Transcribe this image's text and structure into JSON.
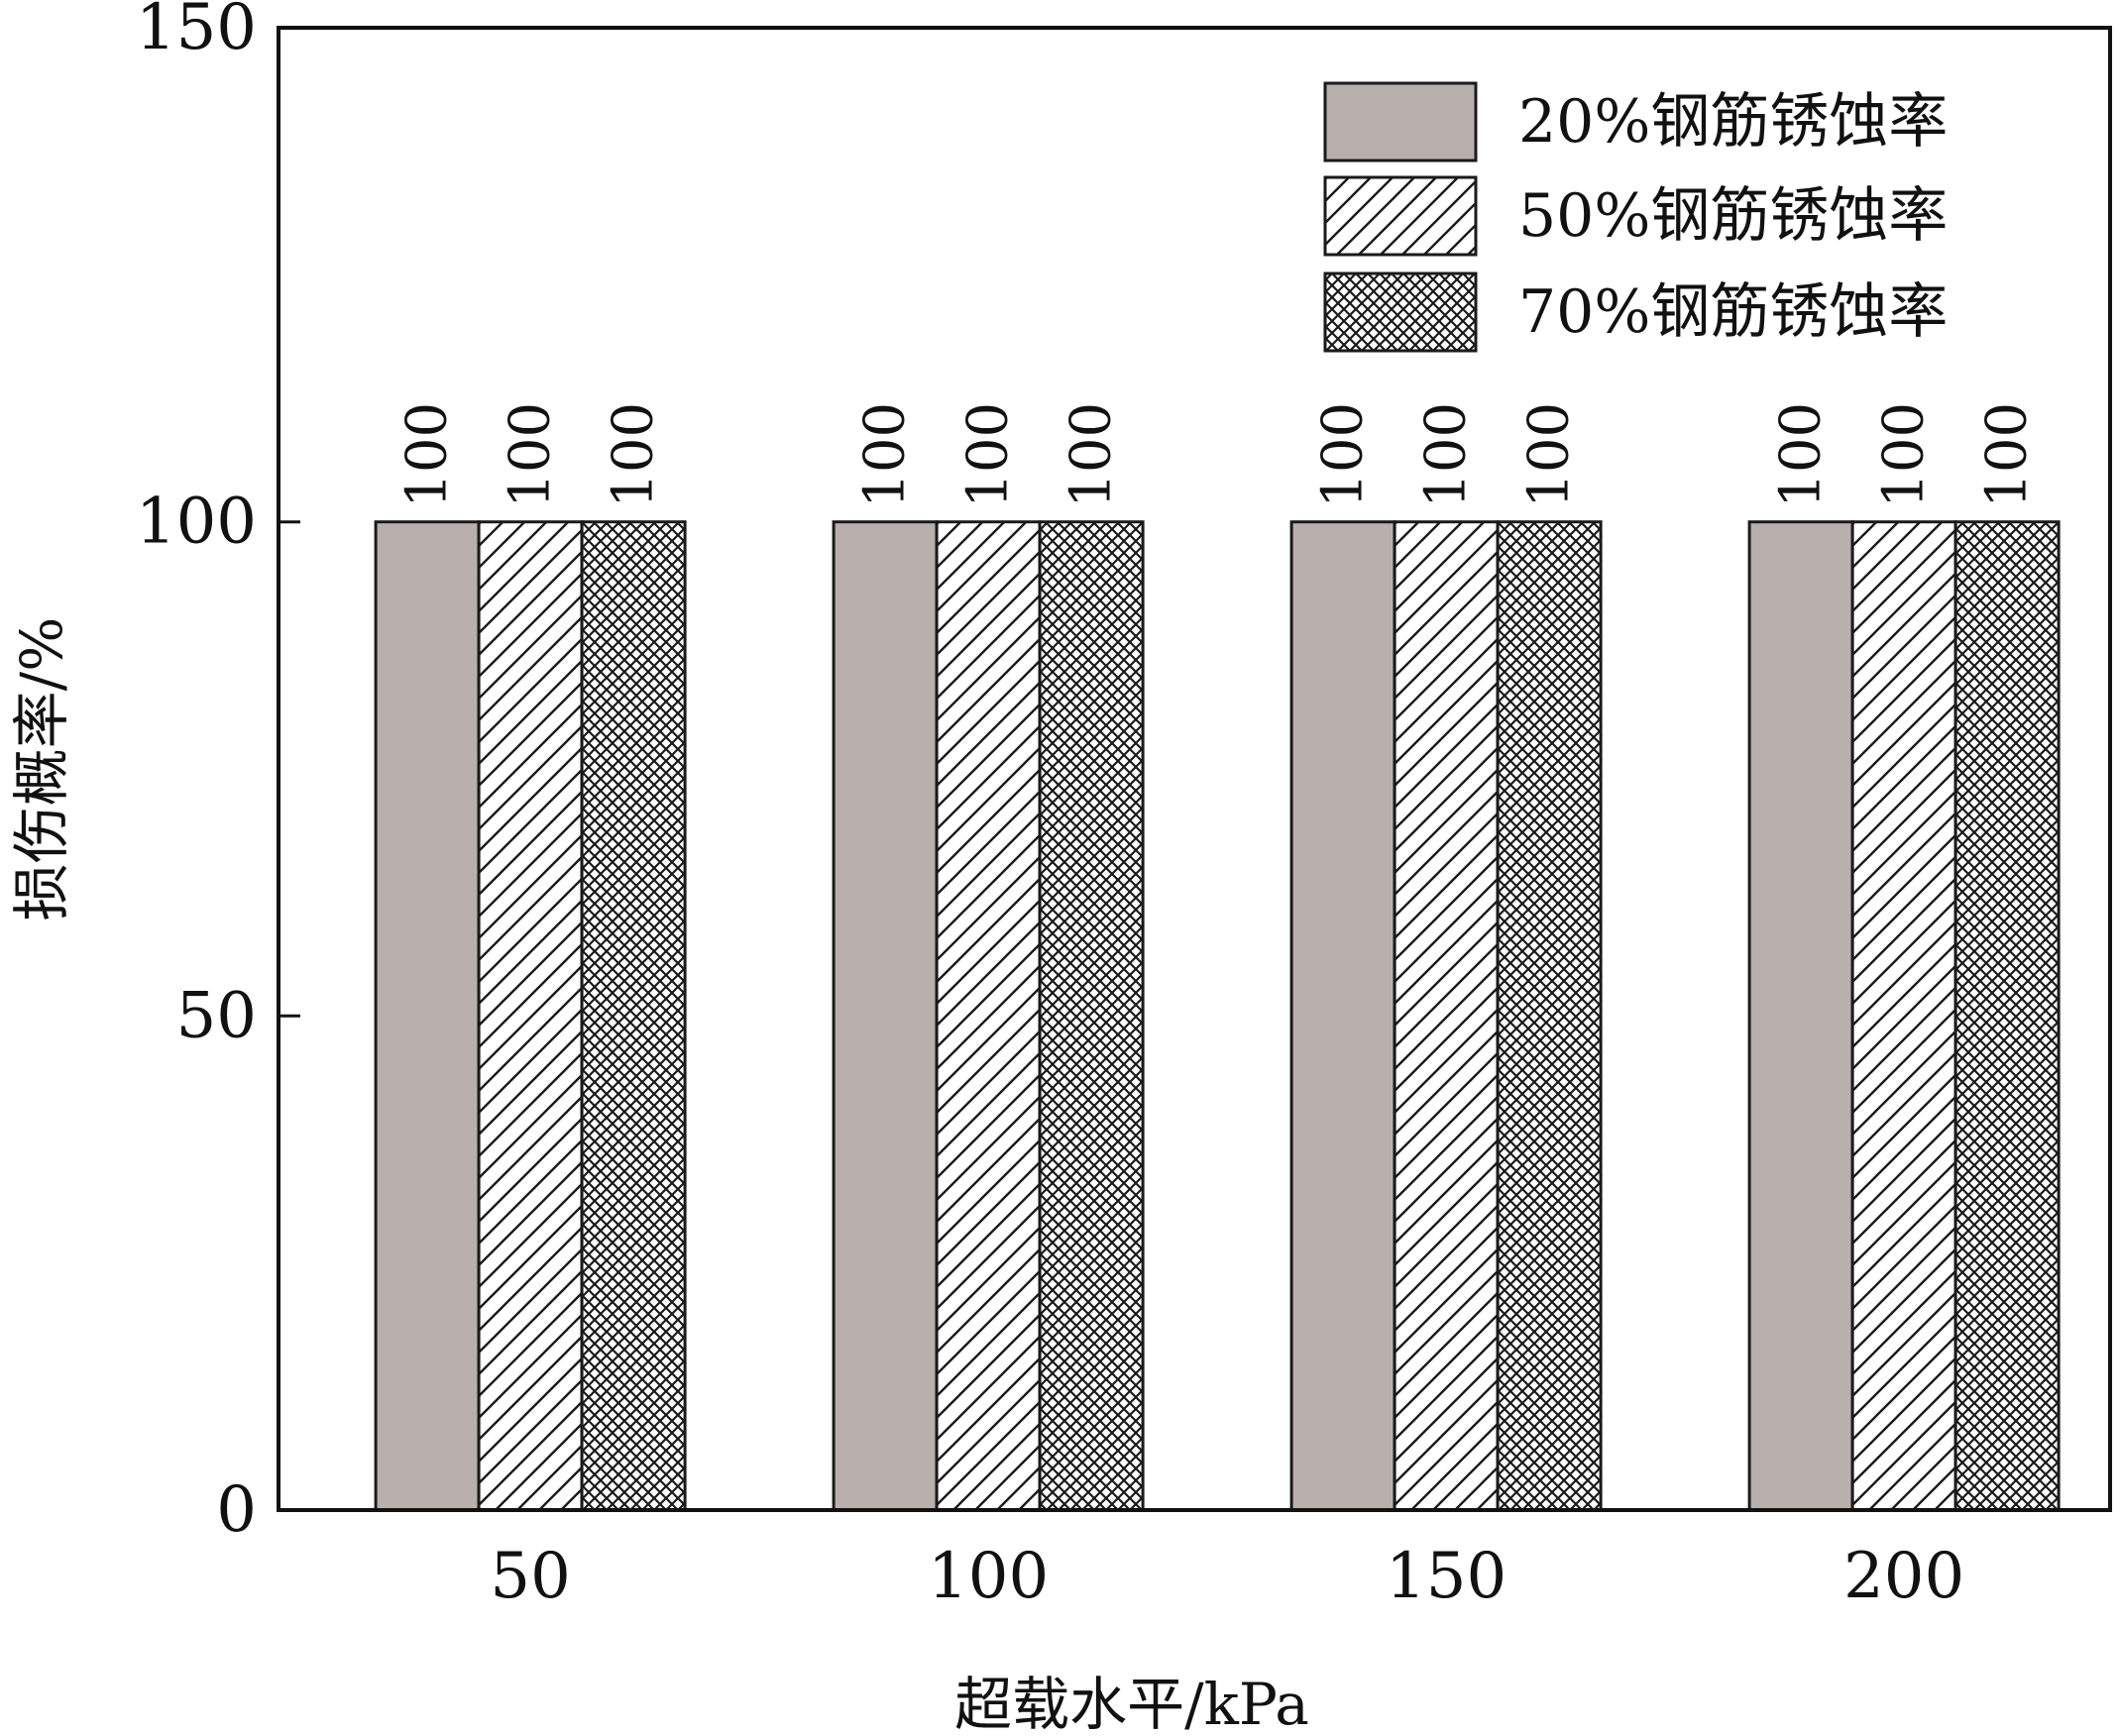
{
  "chart_data": {
    "type": "bar",
    "xlabel": "超载水平/kPa",
    "ylabel": "损伤概率/%",
    "categories": [
      "50",
      "100",
      "150",
      "200"
    ],
    "series": [
      {
        "name": "20%钢筋锈蚀率",
        "values": [
          100,
          100,
          100,
          100
        ],
        "fill": "solid",
        "color": "#b9b0ad"
      },
      {
        "name": "50%钢筋锈蚀率",
        "values": [
          100,
          100,
          100,
          100
        ],
        "fill": "diagonal-hatch",
        "color": "#ffffff"
      },
      {
        "name": "70%钢筋锈蚀率",
        "values": [
          100,
          100,
          100,
          100
        ],
        "fill": "crosshatch",
        "color": "#ffffff"
      }
    ],
    "data_labels": [
      "100",
      "100",
      "100",
      "100"
    ],
    "ylim": [
      0,
      150
    ],
    "yticks": [
      "0",
      "50",
      "100",
      "150"
    ],
    "grid": false,
    "legend_position": "top-right"
  }
}
